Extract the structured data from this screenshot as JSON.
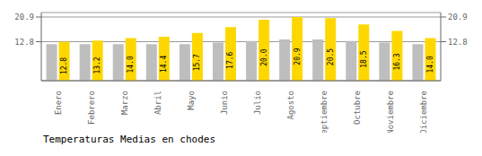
{
  "chart_data": {
    "type": "bar",
    "title": "Temperaturas Medias en chodes",
    "categories": [
      "Enero",
      "Febrero",
      "Marzo",
      "Abril",
      "Mayo",
      "Junio",
      "Julio",
      "Agosto",
      "Septiembre",
      "Octubre",
      "Noviembre",
      "Diciembre"
    ],
    "series": [
      {
        "color": "#BEBEBE",
        "values": [
          12.0,
          12.0,
          12.0,
          12.0,
          12.0,
          12.5,
          13.0,
          13.5,
          13.5,
          13.0,
          12.5,
          12.0
        ]
      },
      {
        "color": "#FFD700",
        "values": [
          12.8,
          13.2,
          14.0,
          14.4,
          15.7,
          17.6,
          20.0,
          20.9,
          20.5,
          18.5,
          16.3,
          14.0
        ],
        "value_labels": [
          "12.8",
          "13.2",
          "14.0",
          "14.4",
          "15.7",
          "17.6",
          "20.0",
          "20.9",
          "20.5",
          "18.5",
          "16.3",
          "14.0"
        ],
        "data_labels": true
      }
    ],
    "ylim": [
      0,
      22.363
    ],
    "yticks": [
      12.8,
      20.9
    ],
    "grid": true
  }
}
